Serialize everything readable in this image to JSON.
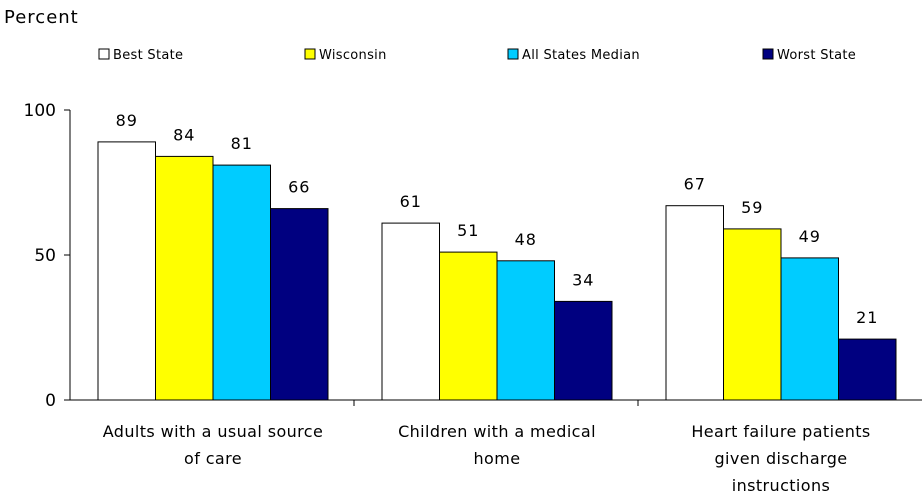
{
  "chart_data": {
    "type": "bar",
    "ylabel": "Percent",
    "ylim": [
      0,
      100
    ],
    "yticks": [
      0,
      50,
      100
    ],
    "grid": false,
    "legend_position": "top",
    "categories": [
      [
        "Adults with a usual source",
        "of care"
      ],
      [
        "Children with a medical",
        "home"
      ],
      [
        "Heart failure patients",
        "given discharge",
        "instructions"
      ]
    ],
    "series": [
      {
        "name": "Best State",
        "color": "#ffffff",
        "values": [
          89,
          61,
          67
        ]
      },
      {
        "name": "Wisconsin",
        "color": "#ffff00",
        "values": [
          84,
          51,
          59
        ]
      },
      {
        "name": "All States Median",
        "color": "#00ccff",
        "values": [
          81,
          48,
          49
        ]
      },
      {
        "name": "Worst State",
        "color": "#000080",
        "values": [
          66,
          34,
          21
        ]
      }
    ]
  }
}
